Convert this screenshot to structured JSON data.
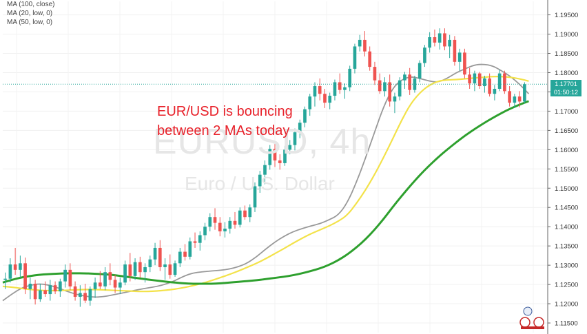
{
  "chart_data": {
    "type": "candlestick",
    "symbol_watermark": "EURUSD, 4h",
    "description_watermark": "Euro / U.S. Dollar",
    "annotation_lines": [
      "EUR/USD is bouncing",
      "between 2 MAs today"
    ],
    "legend": [
      "MA (100, close)",
      "MA (20, low, 0)",
      "MA (50, low, 0)"
    ],
    "ylim": [
      1.1125,
      1.1985
    ],
    "y_ticks": [
      "1.19500",
      "1.19000",
      "1.18500",
      "1.18000",
      "1.17500",
      "1.17000",
      "1.16500",
      "1.16000",
      "1.15500",
      "1.15000",
      "1.14500",
      "1.14000",
      "1.13500",
      "1.13000",
      "1.12500",
      "1.12000",
      "1.11500"
    ],
    "current_price": "1.17701",
    "countdown": "01:50:12",
    "colors": {
      "up": "#26a69a",
      "down": "#ef5350",
      "ma100": "#2ea02e",
      "ma50": "#f3e24a",
      "ma20": "#999999",
      "annotation": "#e8212a",
      "price_tag": "#26a69a",
      "countdown_tag": "#26a69a"
    },
    "series": [
      {
        "name": "MA (100, close)",
        "values": [
          1.1255,
          1.1262,
          1.1268,
          1.1272,
          1.1275,
          1.1277,
          1.1278,
          1.1279,
          1.1279,
          1.1279,
          1.1278,
          1.1277,
          1.1275,
          1.1272,
          1.1269,
          1.1266,
          1.1263,
          1.126,
          1.1257,
          1.1255,
          1.1253,
          1.1252,
          1.1252,
          1.1252,
          1.1253,
          1.1255,
          1.1257,
          1.1259,
          1.1261,
          1.1264,
          1.1267,
          1.127,
          1.1274,
          1.1279,
          1.1285,
          1.1292,
          1.1301,
          1.1313,
          1.1328,
          1.1346,
          1.1367,
          1.1392,
          1.142,
          1.1451,
          1.148,
          1.1508,
          1.1534,
          1.1558,
          1.158,
          1.16,
          1.1619,
          1.1637,
          1.1653,
          1.1668,
          1.1682,
          1.1695,
          1.1707,
          1.1717,
          1.1726
        ]
      },
      {
        "name": "MA (50, low, 0)",
        "values": [
          1.1245,
          1.1243,
          1.124,
          1.1237,
          1.1235,
          1.1234,
          1.1234,
          1.1235,
          1.1236,
          1.1237,
          1.1237,
          1.1236,
          1.1235,
          1.1234,
          1.1233,
          1.1232,
          1.1232,
          1.1233,
          1.1235,
          1.1238,
          1.1242,
          1.1247,
          1.1253,
          1.126,
          1.1268,
          1.1276,
          1.1285,
          1.1295,
          1.1305,
          1.1317,
          1.133,
          1.1343,
          1.1357,
          1.137,
          1.1382,
          1.1392,
          1.1402,
          1.1414,
          1.143,
          1.146,
          1.1495,
          1.1535,
          1.158,
          1.1628,
          1.1677,
          1.172,
          1.1748,
          1.1767,
          1.1778,
          1.1781,
          1.1782,
          1.1784,
          1.1786,
          1.1788,
          1.179,
          1.179,
          1.1788,
          1.1784,
          1.1778
        ]
      },
      {
        "name": "MA (20, low, 0)",
        "values": [
          1.1208,
          1.1225,
          1.124,
          1.1248,
          1.1252,
          1.1249,
          1.1242,
          1.1233,
          1.1225,
          1.122,
          1.1217,
          1.1218,
          1.1222,
          1.1227,
          1.1232,
          1.1237,
          1.1241,
          1.1245,
          1.1251,
          1.126,
          1.1272,
          1.128,
          1.1283,
          1.1285,
          1.1287,
          1.129,
          1.1296,
          1.1306,
          1.1322,
          1.1342,
          1.136,
          1.1375,
          1.1387,
          1.1395,
          1.1402,
          1.1408,
          1.1418,
          1.143,
          1.1462,
          1.1515,
          1.1578,
          1.1645,
          1.1712,
          1.176,
          1.1782,
          1.179,
          1.1785,
          1.1778,
          1.1775,
          1.1785,
          1.18,
          1.181,
          1.182,
          1.1822,
          1.1818,
          1.1805,
          1.179,
          1.177,
          1.1745
        ]
      }
    ],
    "candles": [
      [
        1.1262,
        1.1281,
        1.1238,
        1.1265
      ],
      [
        1.1265,
        1.1318,
        1.1255,
        1.1302
      ],
      [
        1.1302,
        1.1345,
        1.1275,
        1.1288
      ],
      [
        1.1288,
        1.1325,
        1.1268,
        1.1305
      ],
      [
        1.1305,
        1.132,
        1.1225,
        1.1238
      ],
      [
        1.1238,
        1.1268,
        1.1212,
        1.1252
      ],
      [
        1.1252,
        1.1262,
        1.1198,
        1.1212
      ],
      [
        1.1212,
        1.1252,
        1.1205,
        1.1235
      ],
      [
        1.1235,
        1.1258,
        1.1218,
        1.1225
      ],
      [
        1.1225,
        1.1262,
        1.1208,
        1.1248
      ],
      [
        1.1248,
        1.1258,
        1.1225,
        1.1232
      ],
      [
        1.1232,
        1.1265,
        1.1218,
        1.1258
      ],
      [
        1.1258,
        1.1302,
        1.1242,
        1.1288
      ],
      [
        1.1288,
        1.1305,
        1.1235,
        1.1245
      ],
      [
        1.1245,
        1.1258,
        1.1208,
        1.1218
      ],
      [
        1.1218,
        1.1248,
        1.1192,
        1.1228
      ],
      [
        1.1228,
        1.1252,
        1.1202,
        1.1208
      ],
      [
        1.1208,
        1.1245,
        1.1195,
        1.1238
      ],
      [
        1.1238,
        1.1268,
        1.1215,
        1.1255
      ],
      [
        1.1255,
        1.1285,
        1.1238,
        1.1245
      ],
      [
        1.1245,
        1.1295,
        1.1235,
        1.1282
      ],
      [
        1.1282,
        1.1305,
        1.1248,
        1.1262
      ],
      [
        1.1262,
        1.1275,
        1.1228,
        1.1242
      ],
      [
        1.1242,
        1.1268,
        1.1225,
        1.1255
      ],
      [
        1.1255,
        1.1312,
        1.1248,
        1.1302
      ],
      [
        1.1302,
        1.1332,
        1.1258,
        1.1272
      ],
      [
        1.1272,
        1.1318,
        1.1262,
        1.1308
      ],
      [
        1.1308,
        1.1322,
        1.1268,
        1.1282
      ],
      [
        1.1282,
        1.1305,
        1.1255,
        1.1295
      ],
      [
        1.1295,
        1.1325,
        1.1282,
        1.1315
      ],
      [
        1.1315,
        1.1358,
        1.13,
        1.1345
      ],
      [
        1.1345,
        1.1365,
        1.1285,
        1.1295
      ],
      [
        1.1295,
        1.1318,
        1.1262,
        1.1302
      ],
      [
        1.1302,
        1.1328,
        1.1265,
        1.1275
      ],
      [
        1.1275,
        1.1312,
        1.127,
        1.1305
      ],
      [
        1.1305,
        1.1345,
        1.1295,
        1.1335
      ],
      [
        1.1335,
        1.1355,
        1.1312,
        1.1322
      ],
      [
        1.1322,
        1.1372,
        1.1315,
        1.1362
      ],
      [
        1.1362,
        1.1385,
        1.1345,
        1.1358
      ],
      [
        1.1358,
        1.1388,
        1.1338,
        1.1378
      ],
      [
        1.1378,
        1.141,
        1.1365,
        1.14
      ],
      [
        1.14,
        1.1435,
        1.1388,
        1.1425
      ],
      [
        1.1425,
        1.1448,
        1.1392,
        1.141
      ],
      [
        1.141,
        1.1425,
        1.1375,
        1.1388
      ],
      [
        1.1388,
        1.1412,
        1.1372,
        1.1395
      ],
      [
        1.1395,
        1.1425,
        1.1382,
        1.1415
      ],
      [
        1.1415,
        1.1438,
        1.1395,
        1.1405
      ],
      [
        1.1405,
        1.145,
        1.1398,
        1.1442
      ],
      [
        1.1442,
        1.1455,
        1.1418,
        1.1425
      ],
      [
        1.1425,
        1.1458,
        1.1412,
        1.145
      ],
      [
        1.145,
        1.1515,
        1.1438,
        1.1505
      ],
      [
        1.1505,
        1.1545,
        1.1488,
        1.1535
      ],
      [
        1.1535,
        1.1572,
        1.151,
        1.156
      ],
      [
        1.156,
        1.1612,
        1.1548,
        1.1602
      ],
      [
        1.1602,
        1.1618,
        1.1555,
        1.1572
      ],
      [
        1.1572,
        1.1588,
        1.1548,
        1.1565
      ],
      [
        1.1565,
        1.161,
        1.1558,
        1.16
      ],
      [
        1.16,
        1.1625,
        1.1588,
        1.1612
      ],
      [
        1.1612,
        1.1655,
        1.1598,
        1.1645
      ],
      [
        1.1645,
        1.1678,
        1.163,
        1.167
      ],
      [
        1.167,
        1.1712,
        1.1658,
        1.1705
      ],
      [
        1.1705,
        1.1745,
        1.1688,
        1.1738
      ],
      [
        1.1738,
        1.1775,
        1.1712,
        1.1765
      ],
      [
        1.1765,
        1.1785,
        1.1728,
        1.1745
      ],
      [
        1.1745,
        1.1758,
        1.1708,
        1.1722
      ],
      [
        1.1722,
        1.1748,
        1.1705,
        1.174
      ],
      [
        1.174,
        1.1782,
        1.1728,
        1.1775
      ],
      [
        1.1775,
        1.1798,
        1.1745,
        1.1755
      ],
      [
        1.1755,
        1.1772,
        1.1732,
        1.1762
      ],
      [
        1.1762,
        1.1818,
        1.1752,
        1.181
      ],
      [
        1.181,
        1.1875,
        1.1798,
        1.1868
      ],
      [
        1.1868,
        1.1898,
        1.1855,
        1.1885
      ],
      [
        1.1885,
        1.1908,
        1.1842,
        1.1855
      ],
      [
        1.1855,
        1.1868,
        1.1805,
        1.1815
      ],
      [
        1.1815,
        1.1828,
        1.1768,
        1.178
      ],
      [
        1.178,
        1.1798,
        1.1745,
        1.1752
      ],
      [
        1.1752,
        1.1788,
        1.1738,
        1.1775
      ],
      [
        1.1775,
        1.1795,
        1.1712,
        1.1725
      ],
      [
        1.1725,
        1.1748,
        1.1695,
        1.1738
      ],
      [
        1.1738,
        1.1788,
        1.1728,
        1.178
      ],
      [
        1.178,
        1.1802,
        1.1758,
        1.1795
      ],
      [
        1.1795,
        1.1812,
        1.1742,
        1.1755
      ],
      [
        1.1755,
        1.1792,
        1.1748,
        1.1785
      ],
      [
        1.1785,
        1.1832,
        1.1775,
        1.1825
      ],
      [
        1.1825,
        1.1872,
        1.1815,
        1.1865
      ],
      [
        1.1865,
        1.1905,
        1.1852,
        1.1892
      ],
      [
        1.1892,
        1.1912,
        1.1868,
        1.1878
      ],
      [
        1.1878,
        1.1915,
        1.186,
        1.1902
      ],
      [
        1.1902,
        1.1915,
        1.1858,
        1.1868
      ],
      [
        1.1868,
        1.1898,
        1.1838,
        1.1885
      ],
      [
        1.1885,
        1.1895,
        1.1818,
        1.1828
      ],
      [
        1.1828,
        1.1862,
        1.1805,
        1.1852
      ],
      [
        1.1852,
        1.1862,
        1.1785,
        1.1795
      ],
      [
        1.1795,
        1.1812,
        1.1758,
        1.1772
      ],
      [
        1.1772,
        1.1805,
        1.1752,
        1.1798
      ],
      [
        1.1798,
        1.1802,
        1.1758,
        1.1765
      ],
      [
        1.1765,
        1.1792,
        1.1748,
        1.1785
      ],
      [
        1.1785,
        1.1798,
        1.1738,
        1.1745
      ],
      [
        1.1745,
        1.1768,
        1.1728,
        1.1758
      ],
      [
        1.1758,
        1.1808,
        1.1752,
        1.1798
      ],
      [
        1.1798,
        1.1805,
        1.1745,
        1.1752
      ],
      [
        1.1752,
        1.1765,
        1.1712,
        1.1722
      ],
      [
        1.1722,
        1.1745,
        1.1708,
        1.1738
      ],
      [
        1.1738,
        1.1752,
        1.171,
        1.1725
      ],
      [
        1.1725,
        1.1775,
        1.172,
        1.177
      ]
    ]
  }
}
